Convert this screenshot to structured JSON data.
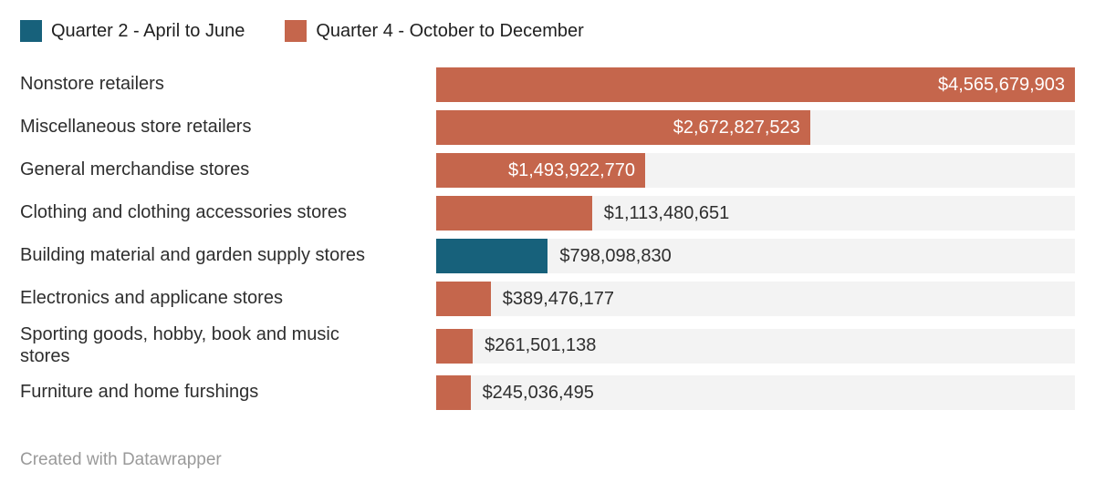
{
  "legend": {
    "items": [
      {
        "label": "Quarter 2 - April to June",
        "color": "#17617b"
      },
      {
        "label": "Quarter 4 - October to December",
        "color": "#c5664c"
      }
    ]
  },
  "chart_data": {
    "type": "bar",
    "orientation": "horizontal",
    "title": "",
    "legend_position": "top",
    "grid": false,
    "xlim": [
      0,
      4565679903
    ],
    "categories": [
      "Nonstore retailers",
      "Miscellaneous store retailers",
      "General merchandise stores",
      "Clothing and clothing accessories stores",
      "Building material and garden supply stores",
      "Electronics and applicane stores",
      "Sporting goods, hobby, book and music stores",
      "Furniture and home furshings"
    ],
    "series": [
      {
        "name": "Quarter 2 - April to June",
        "color": "#17617b"
      },
      {
        "name": "Quarter 4 - October to December",
        "color": "#c5664c"
      }
    ],
    "rows": [
      {
        "category": "Nonstore retailers",
        "display_category": "Nonstore retailers",
        "series": "Quarter 4 - October to December",
        "value": 4565679903,
        "value_label": "$4,565,679,903",
        "color": "#c5664c",
        "value_label_position": "inside"
      },
      {
        "category": "Miscellaneous store retailers",
        "display_category": "Miscellaneous store retailers",
        "series": "Quarter 4 - October to December",
        "value": 2672827523,
        "value_label": "$2,672,827,523",
        "color": "#c5664c",
        "value_label_position": "inside"
      },
      {
        "category": "General merchandise stores",
        "display_category": "General merchandise stores",
        "series": "Quarter 4 - October to December",
        "value": 1493922770,
        "value_label": "$1,493,922,770",
        "color": "#c5664c",
        "value_label_position": "inside"
      },
      {
        "category": "Clothing and clothing accessories stores",
        "display_category": "Clothing and clothing accessories stores",
        "series": "Quarter 4 - October to December",
        "value": 1113480651,
        "value_label": "$1,113,480,651",
        "color": "#c5664c",
        "value_label_position": "outside"
      },
      {
        "category": "Building material and garden supply stores",
        "display_category": "Building material and garden supply stores",
        "series": "Quarter 2 - April to June",
        "value": 798098830,
        "value_label": "$798,098,830",
        "color": "#17617b",
        "value_label_position": "outside"
      },
      {
        "category": "Electronics and applicane stores",
        "display_category": "Electronics and applicane stores",
        "series": "Quarter 4 - October to December",
        "value": 389476177,
        "value_label": "$389,476,177",
        "color": "#c5664c",
        "value_label_position": "outside"
      },
      {
        "category": "Sporting goods, hobby, book and music stores",
        "display_category": "Sporting goods, hobby, book and music\nstores",
        "series": "Quarter 4 - October to December",
        "value": 261501138,
        "value_label": "$261,501,138",
        "color": "#c5664c",
        "value_label_position": "outside"
      },
      {
        "category": "Furniture and home furshings",
        "display_category": "Furniture and home furshings",
        "series": "Quarter 4 - October to December",
        "value": 245036495,
        "value_label": "$245,036,495",
        "color": "#c5664c",
        "value_label_position": "outside"
      }
    ]
  },
  "footer": {
    "credit": "Created with Datawrapper"
  }
}
